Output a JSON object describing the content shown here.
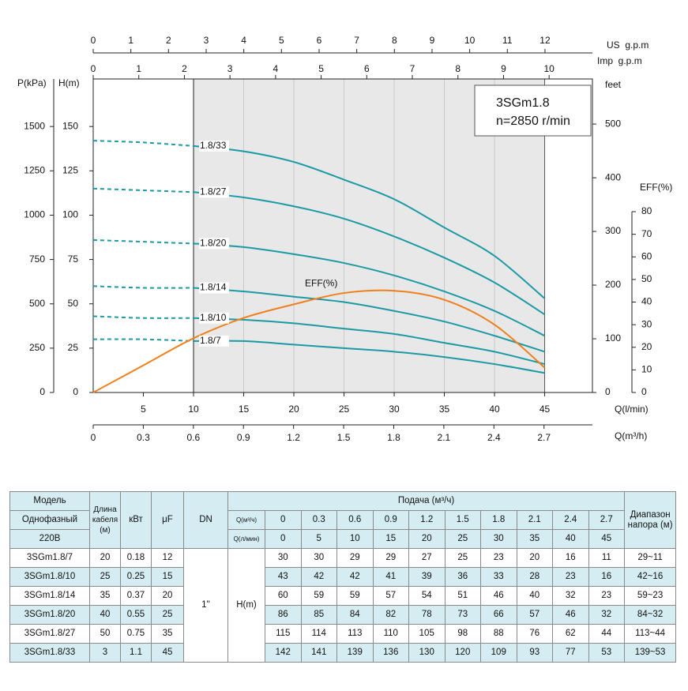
{
  "chart_data": {
    "type": "line",
    "title": "3SGm1.8",
    "subtitle": "n=2850 r/min",
    "x_label": "Q(l/min)",
    "x": [
      0,
      5,
      10,
      15,
      20,
      25,
      30,
      35,
      40,
      45
    ],
    "xlim": [
      0,
      49.76
    ],
    "xticks": [
      5,
      10,
      15,
      20,
      25,
      30,
      35,
      40,
      45
    ],
    "y_label": "H(m)",
    "ylim": [
      0,
      176.8
    ],
    "yticks": [
      0,
      25,
      50,
      75,
      100,
      125,
      150
    ],
    "y2_label": "EFF(%)",
    "y2lim": [
      0,
      138.7
    ],
    "y2ticks": [
      0,
      10,
      20,
      30,
      40,
      50,
      60,
      70,
      80
    ],
    "pressure_axis": {
      "label": "P(kPa)",
      "lim": [
        0,
        1768
      ],
      "ticks": [
        0,
        250,
        500,
        750,
        1000,
        1250,
        1500
      ]
    },
    "feet_axis": {
      "label": "feet",
      "lim": [
        0,
        584
      ],
      "ticks": [
        0,
        100,
        200,
        300,
        400,
        500
      ]
    },
    "us_gpm_axis": {
      "label": "US  g.p.m",
      "lim": [
        0,
        13.26
      ],
      "ticks": [
        0,
        1,
        2,
        3,
        4,
        5,
        6,
        7,
        8,
        9,
        10,
        11,
        12
      ]
    },
    "imp_gpm_axis": {
      "label": "Imp  g.p.m",
      "lim": [
        0,
        10.95
      ],
      "ticks": [
        0,
        1,
        2,
        3,
        4,
        5,
        6,
        7,
        8,
        9,
        10
      ]
    },
    "m3h_axis": {
      "label": "Q(m³/h)",
      "lim": [
        0,
        2.99
      ],
      "ticks": [
        0,
        0.3,
        0.6,
        0.9,
        1.2,
        1.5,
        1.8,
        2.1,
        2.4,
        2.7
      ]
    },
    "shaded_range": [
      10,
      45
    ],
    "series": [
      {
        "name": "1.8/33",
        "color": "#1b9aa5",
        "values": [
          142,
          141,
          139,
          136,
          130,
          120,
          109,
          93,
          77,
          53
        ]
      },
      {
        "name": "1.8/27",
        "color": "#1b9aa5",
        "values": [
          115,
          114,
          113,
          110,
          105,
          98,
          88,
          76,
          62,
          44
        ]
      },
      {
        "name": "1.8/20",
        "color": "#1b9aa5",
        "values": [
          86,
          85,
          84,
          82,
          78,
          73,
          66,
          57,
          46,
          32
        ]
      },
      {
        "name": "1.8/14",
        "color": "#1b9aa5",
        "values": [
          60,
          59,
          59,
          57,
          54,
          51,
          46,
          40,
          32,
          23
        ]
      },
      {
        "name": "1.8/10",
        "color": "#1b9aa5",
        "values": [
          43,
          42,
          42,
          41,
          39,
          36,
          33,
          28,
          23,
          16
        ]
      },
      {
        "name": "1.8/7",
        "color": "#1b9aa5",
        "values": [
          30,
          30,
          29,
          29,
          27,
          25,
          23,
          20,
          16,
          11
        ]
      },
      {
        "name": "EFF(%)",
        "color": "#f0801c",
        "axis": "y2",
        "values": [
          0,
          12,
          24,
          33,
          39,
          44,
          45,
          41,
          30,
          11
        ]
      }
    ]
  },
  "table": {
    "model_label": "Модель",
    "phase": "Однофазный",
    "voltage": "220В",
    "cable_label": "Длина кабеля (м)",
    "kw_label": "кВт",
    "uf_label": "μF",
    "dn_label": "DN",
    "flow_label": "Подача (м³/ч)",
    "q_m3h_label": "Q(м³/ч)",
    "q_lmin_label": "Q(л/мин)",
    "q_m3h": [
      0,
      0.3,
      0.6,
      0.9,
      1.2,
      1.5,
      1.8,
      2.1,
      2.4,
      2.7
    ],
    "q_lmin": [
      0,
      5,
      10,
      15,
      20,
      25,
      30,
      35,
      40,
      45
    ],
    "range_label": "Диапазон напора (м)",
    "dn": "1''",
    "head_label": "H(m)",
    "rows": [
      {
        "model": "3SGm1.8/7",
        "cable": 20,
        "kw": 0.18,
        "uf": 12,
        "head": [
          30,
          30,
          29,
          29,
          27,
          25,
          23,
          20,
          16,
          11
        ],
        "range": "29~11"
      },
      {
        "model": "3SGm1.8/10",
        "cable": 25,
        "kw": 0.25,
        "uf": 15,
        "head": [
          43,
          42,
          42,
          41,
          39,
          36,
          33,
          28,
          23,
          16
        ],
        "range": "42~16"
      },
      {
        "model": "3SGm1.8/14",
        "cable": 35,
        "kw": 0.37,
        "uf": 20,
        "head": [
          60,
          59,
          59,
          57,
          54,
          51,
          46,
          40,
          32,
          23
        ],
        "range": "59~23"
      },
      {
        "model": "3SGm1.8/20",
        "cable": 40,
        "kw": 0.55,
        "uf": 25,
        "head": [
          86,
          85,
          84,
          82,
          78,
          73,
          66,
          57,
          46,
          32
        ],
        "range": "84~32"
      },
      {
        "model": "3SGm1.8/27",
        "cable": 50,
        "kw": 0.75,
        "uf": 35,
        "head": [
          115,
          114,
          113,
          110,
          105,
          98,
          88,
          76,
          62,
          44
        ],
        "range": "113~44"
      },
      {
        "model": "3SGm1.8/33",
        "cable": 3,
        "kw": 1.1,
        "uf": 45,
        "head": [
          142,
          141,
          139,
          136,
          130,
          120,
          109,
          93,
          77,
          53
        ],
        "range": "139~53"
      }
    ]
  }
}
